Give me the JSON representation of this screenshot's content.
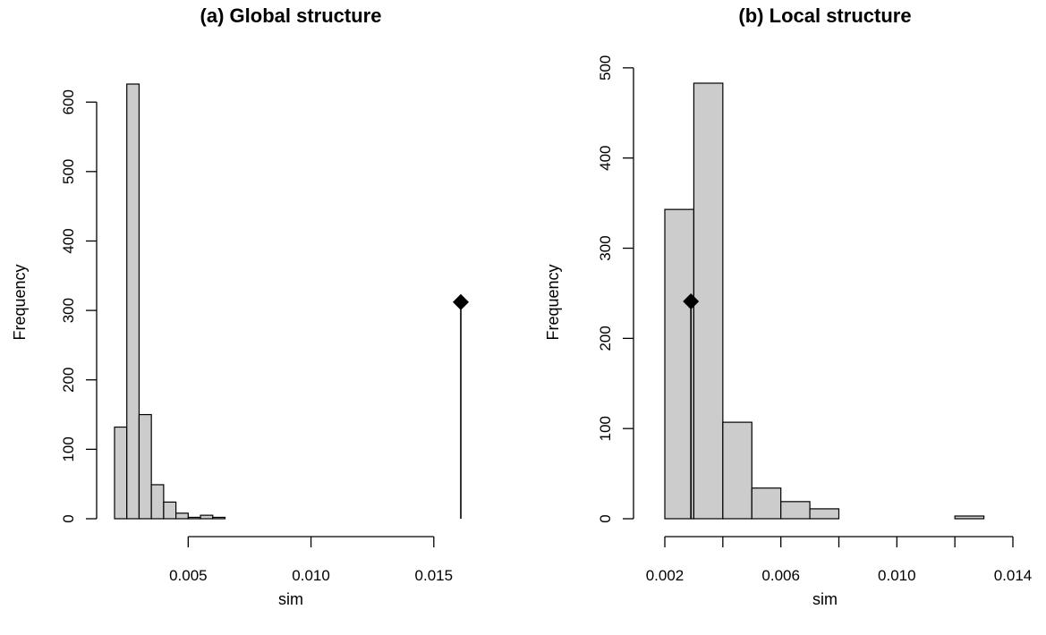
{
  "chart_data": [
    {
      "type": "bar",
      "title": "(a) Global structure",
      "xlabel": "sim",
      "ylabel": "Frequency",
      "xlim": [
        0.002,
        0.0165
      ],
      "ylim": [
        0,
        640
      ],
      "x_ticks": [
        0.005,
        0.01,
        0.015
      ],
      "x_tick_labels": [
        "0.005",
        "0.010",
        "0.015"
      ],
      "y_ticks": [
        0,
        100,
        200,
        300,
        400,
        500,
        600
      ],
      "y_tick_labels": [
        "0",
        "100",
        "200",
        "300",
        "400",
        "500",
        "600"
      ],
      "bin_width": 0.0005,
      "bins": [
        {
          "start": 0.002,
          "end": 0.0025,
          "count": 132
        },
        {
          "start": 0.0025,
          "end": 0.003,
          "count": 626
        },
        {
          "start": 0.003,
          "end": 0.0035,
          "count": 150
        },
        {
          "start": 0.0035,
          "end": 0.004,
          "count": 49
        },
        {
          "start": 0.004,
          "end": 0.0045,
          "count": 24
        },
        {
          "start": 0.0045,
          "end": 0.005,
          "count": 8
        },
        {
          "start": 0.005,
          "end": 0.0055,
          "count": 2
        },
        {
          "start": 0.0055,
          "end": 0.006,
          "count": 5
        },
        {
          "start": 0.006,
          "end": 0.0065,
          "count": 2
        }
      ],
      "observed": {
        "x": 0.0161,
        "y": 312
      },
      "bar_color": "#cccccc",
      "marker_color": "#000000"
    },
    {
      "type": "bar",
      "title": "(b) Local structure",
      "xlabel": "sim",
      "ylabel": "Frequency",
      "xlim": [
        0.002,
        0.014
      ],
      "ylim": [
        0,
        500
      ],
      "x_ticks": [
        0.002,
        0.004,
        0.006,
        0.008,
        0.01,
        0.012,
        0.014
      ],
      "x_tick_labels": [
        "0.002",
        "",
        "0.006",
        "",
        "0.010",
        "",
        "0.014"
      ],
      "y_ticks": [
        0,
        100,
        200,
        300,
        400,
        500
      ],
      "y_tick_labels": [
        "0",
        "100",
        "200",
        "300",
        "400",
        "500"
      ],
      "bin_width": 0.001,
      "bins": [
        {
          "start": 0.002,
          "end": 0.003,
          "count": 343
        },
        {
          "start": 0.003,
          "end": 0.004,
          "count": 483
        },
        {
          "start": 0.004,
          "end": 0.005,
          "count": 107
        },
        {
          "start": 0.005,
          "end": 0.006,
          "count": 34
        },
        {
          "start": 0.006,
          "end": 0.007,
          "count": 19
        },
        {
          "start": 0.007,
          "end": 0.008,
          "count": 11
        },
        {
          "start": 0.008,
          "end": 0.009,
          "count": 0
        },
        {
          "start": 0.009,
          "end": 0.01,
          "count": 0
        },
        {
          "start": 0.01,
          "end": 0.011,
          "count": 0
        },
        {
          "start": 0.011,
          "end": 0.012,
          "count": 0
        },
        {
          "start": 0.012,
          "end": 0.013,
          "count": 3
        }
      ],
      "observed": {
        "x": 0.0029,
        "y": 241
      },
      "bar_color": "#cccccc",
      "marker_color": "#000000"
    }
  ]
}
